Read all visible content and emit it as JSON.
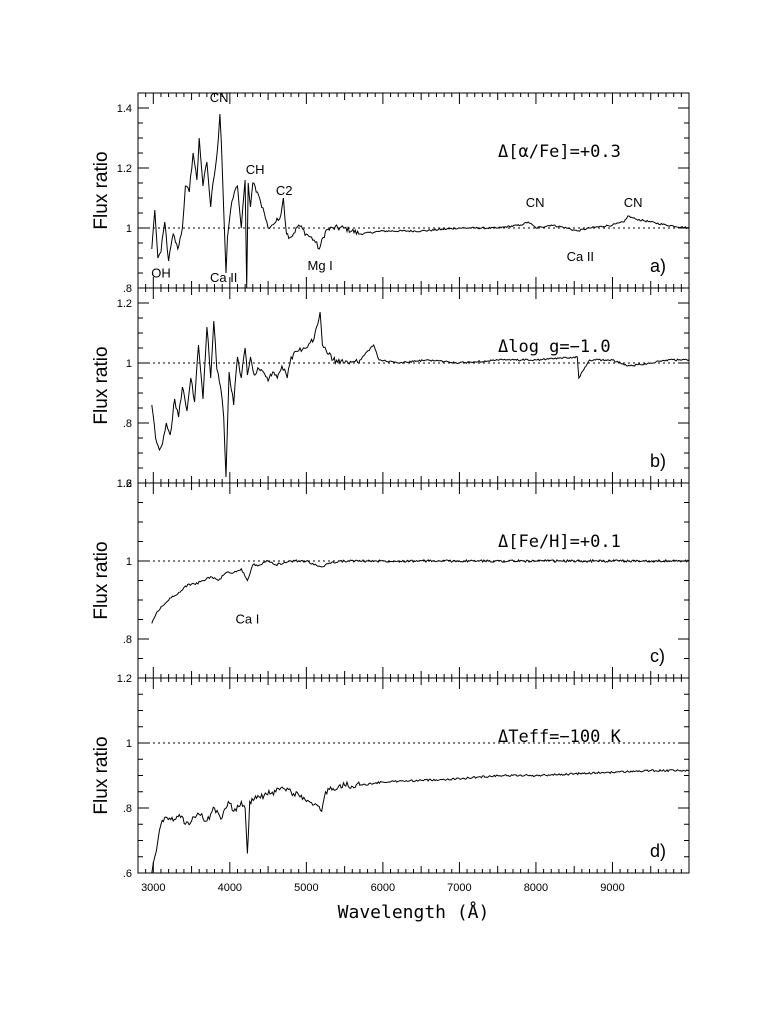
{
  "chart_data": {
    "type": "line",
    "xlabel": "Wavelength (Å)",
    "xlim": [
      2800,
      10000
    ],
    "x_ticks": [
      3000,
      4000,
      5000,
      6000,
      7000,
      8000,
      9000
    ],
    "panels": [
      {
        "letter": "a)",
        "title": "Δ[α/Fe]=+0.3",
        "ylabel": "Flux ratio",
        "ylim": [
          0.8,
          1.45
        ],
        "y_ticks": [
          0.8,
          1.0,
          1.2,
          1.4
        ],
        "y_tick_labels": [
          ".8",
          "1",
          "1.2",
          "1.4"
        ],
        "reference": 1.0,
        "series": [
          {
            "x": [
              2980,
              3020,
              3060,
              3100,
              3150,
              3200,
              3260,
              3320,
              3380,
              3420,
              3470,
              3520,
              3570,
              3600,
              3650,
              3700,
              3750,
              3780,
              3820,
              3850,
              3870,
              3890,
              3920,
              3950,
              3970,
              4010,
              4060,
              4100,
              4150,
              4200,
              4220,
              4240,
              4270,
              4300,
              4360,
              4400,
              4450,
              4500,
              4550,
              4600,
              4650,
              4700,
              4740,
              4800,
              4900,
              5000,
              5100,
              5170,
              5250,
              5350,
              5500,
              5700,
              6000,
              6500,
              7000,
              7500,
              7800,
              7900,
              8000,
              8200,
              8400,
              8540,
              8700,
              9000,
              9150,
              9200,
              9300,
              9500,
              9700,
              10000
            ],
            "y": [
              0.93,
              1.06,
              0.9,
              0.92,
              1.02,
              0.89,
              0.98,
              0.93,
              1.0,
              1.14,
              1.12,
              1.25,
              1.16,
              1.3,
              1.14,
              1.22,
              1.07,
              1.15,
              1.22,
              1.3,
              1.38,
              1.28,
              1.06,
              0.85,
              0.97,
              1.06,
              1.12,
              1.14,
              1.0,
              1.16,
              0.8,
              1.15,
              1.07,
              1.15,
              1.12,
              1.09,
              1.05,
              1.0,
              1.01,
              1.02,
              1.03,
              1.1,
              0.98,
              0.97,
              1.01,
              0.98,
              0.96,
              0.93,
              0.99,
              1.0,
              1.0,
              0.98,
              0.99,
              0.99,
              1.0,
              1.0,
              1.01,
              1.02,
              1.0,
              1.01,
              1.0,
              0.99,
              1.0,
              1.01,
              1.02,
              1.04,
              1.03,
              1.02,
              1.01,
              1.0
            ]
          }
        ],
        "annotations": [
          {
            "text": "OH",
            "x": 3100,
            "y": 0.835
          },
          {
            "text": "CN",
            "x": 3860,
            "y": 1.42
          },
          {
            "text": "Ca II",
            "x": 3920,
            "y": 0.82
          },
          {
            "text": "CH",
            "x": 4330,
            "y": 1.18
          },
          {
            "text": "C2",
            "x": 4710,
            "y": 1.11
          },
          {
            "text": "Mg I",
            "x": 5180,
            "y": 0.86
          },
          {
            "text": "CN",
            "x": 7990,
            "y": 1.07
          },
          {
            "text": "Ca II",
            "x": 8580,
            "y": 0.89
          },
          {
            "text": "CN",
            "x": 9270,
            "y": 1.07
          }
        ]
      },
      {
        "letter": "b)",
        "title": "Δlog g=−1.0",
        "ylabel": "Flux ratio",
        "ylim": [
          0.6,
          1.25
        ],
        "y_ticks": [
          0.6,
          0.8,
          1.0,
          1.2
        ],
        "y_tick_labels": [
          ".6",
          ".8",
          "1",
          "1.2"
        ],
        "reference": 1.0,
        "series": [
          {
            "x": [
              2980,
              3030,
              3080,
              3120,
              3170,
              3220,
              3280,
              3330,
              3380,
              3440,
              3490,
              3540,
              3590,
              3650,
              3700,
              3750,
              3790,
              3830,
              3880,
              3920,
              3950,
              3990,
              4050,
              4100,
              4150,
              4200,
              4230,
              4270,
              4320,
              4380,
              4440,
              4500,
              4560,
              4620,
              4680,
              4750,
              4800,
              4900,
              5000,
              5100,
              5180,
              5210,
              5260,
              5350,
              5500,
              5700,
              5880,
              5950,
              6200,
              6600,
              7000,
              7500,
              8000,
              8540,
              8560,
              8700,
              9000,
              9200,
              9500,
              9700,
              10000
            ],
            "y": [
              0.86,
              0.75,
              0.71,
              0.73,
              0.8,
              0.76,
              0.88,
              0.82,
              0.92,
              0.84,
              0.95,
              0.87,
              1.06,
              0.88,
              1.12,
              0.95,
              1.14,
              0.98,
              0.92,
              0.82,
              0.62,
              0.97,
              0.86,
              1.02,
              0.95,
              1.05,
              0.96,
              1.02,
              0.96,
              0.98,
              0.97,
              0.94,
              0.97,
              0.95,
              0.99,
              0.95,
              1.02,
              1.04,
              1.05,
              1.08,
              1.17,
              1.06,
              1.04,
              1.01,
              1.0,
              1.01,
              1.06,
              1.01,
              1.0,
              1.01,
              1.0,
              1.01,
              1.01,
              1.02,
              0.95,
              1.01,
              1.01,
              0.99,
              1.0,
              1.01,
              1.01
            ]
          }
        ]
      },
      {
        "letter": "c)",
        "title": "Δ[Fe/H]=+0.1",
        "ylabel": "Flux ratio",
        "ylim": [
          0.7,
          1.2
        ],
        "y_ticks": [
          0.8,
          1.0,
          1.2
        ],
        "y_tick_labels": [
          ".8",
          "1",
          "1.2"
        ],
        "reference": 1.0,
        "series": [
          {
            "x": [
              2980,
              3050,
              3150,
              3250,
              3350,
              3450,
              3550,
              3650,
              3750,
              3850,
              3950,
              4050,
              4150,
              4230,
              4300,
              4400,
              4500,
              4600,
              4700,
              4800,
              4900,
              5000,
              5100,
              5200,
              5300,
              5500,
              5800,
              6200,
              7000,
              8000,
              9000,
              10000
            ],
            "y": [
              0.84,
              0.87,
              0.89,
              0.91,
              0.92,
              0.94,
              0.94,
              0.95,
              0.96,
              0.95,
              0.97,
              0.97,
              0.98,
              0.95,
              0.99,
              0.99,
              1.0,
              0.99,
              0.995,
              1.0,
              1.0,
              1.0,
              0.99,
              0.985,
              0.995,
              1.0,
              1.0,
              1.0,
              1.0,
              1.0,
              1.0,
              1.0
            ]
          }
        ],
        "annotations": [
          {
            "text": "Ca I",
            "x": 4230,
            "y": 0.84
          }
        ]
      },
      {
        "letter": "d)",
        "title": "ΔTeff=−100 K",
        "ylabel": "Flux ratio",
        "ylim": [
          0.6,
          1.2
        ],
        "y_ticks": [
          0.6,
          0.8,
          1.0,
          1.2
        ],
        "y_tick_labels": [
          ".6",
          ".8",
          "1",
          "1.2"
        ],
        "reference": 1.0,
        "series": [
          {
            "x": [
              2980,
              3020,
              3060,
              3100,
              3180,
              3260,
              3340,
              3420,
              3500,
              3600,
              3700,
              3800,
              3900,
              3980,
              4050,
              4150,
              4200,
              4230,
              4260,
              4350,
              4450,
              4600,
              4700,
              4800,
              4900,
              5000,
              5100,
              5200,
              5250,
              5350,
              5500,
              5700,
              6000,
              6500,
              7000,
              7500,
              8000,
              8500,
              9000,
              9500,
              10000
            ],
            "y": [
              0.6,
              0.65,
              0.7,
              0.75,
              0.77,
              0.76,
              0.78,
              0.75,
              0.76,
              0.78,
              0.76,
              0.8,
              0.77,
              0.82,
              0.79,
              0.82,
              0.8,
              0.66,
              0.82,
              0.83,
              0.84,
              0.85,
              0.86,
              0.85,
              0.84,
              0.82,
              0.81,
              0.79,
              0.85,
              0.86,
              0.87,
              0.87,
              0.88,
              0.885,
              0.89,
              0.9,
              0.9,
              0.905,
              0.91,
              0.915,
              0.915
            ]
          }
        ]
      }
    ]
  }
}
